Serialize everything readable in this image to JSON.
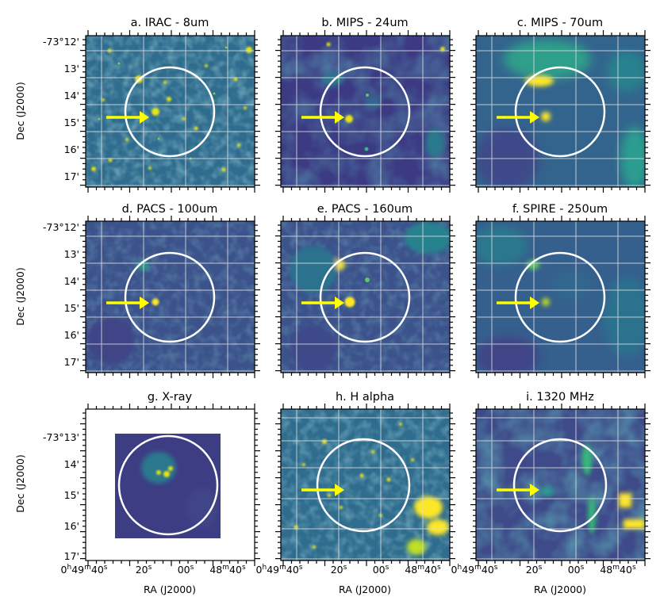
{
  "figure": {
    "panels": [
      {
        "id": "a",
        "title": "a. IRAC - 8um"
      },
      {
        "id": "b",
        "title": "b. MIPS - 24um"
      },
      {
        "id": "c",
        "title": "c. MIPS - 70um"
      },
      {
        "id": "d",
        "title": "d. PACS - 100um"
      },
      {
        "id": "e",
        "title": "e. PACS - 160um"
      },
      {
        "id": "f",
        "title": "f. SPIRE - 250um"
      },
      {
        "id": "g",
        "title": "g. X-ray"
      },
      {
        "id": "h",
        "title": "h. H alpha"
      },
      {
        "id": "i",
        "title": "i. 1320 MHz"
      }
    ],
    "dec_label": "Dec (J2000)",
    "ra_label": "RA (J2000)",
    "dec_ticks_rows_1_2": [
      "-73°12'",
      "13'",
      "14'",
      "15'",
      "16'",
      "17'"
    ],
    "dec_ticks_row_3": [
      "-73°13'",
      "14'",
      "15'",
      "16'",
      "17'"
    ],
    "ra_ticks": [
      {
        "h": "0",
        "hs": "h",
        "m": "49",
        "ms": "m",
        "s": "40",
        "ss": "s"
      },
      {
        "s": "20",
        "ss": "s"
      },
      {
        "s": "00",
        "ss": "s"
      },
      {
        "m": "48",
        "ms": "m",
        "s": "40",
        "ss": "s"
      }
    ],
    "colors": {
      "colormap": "viridis",
      "arrow": "#ffff00",
      "circle": "#ffffff",
      "grid": "#dcdcdc"
    }
  }
}
